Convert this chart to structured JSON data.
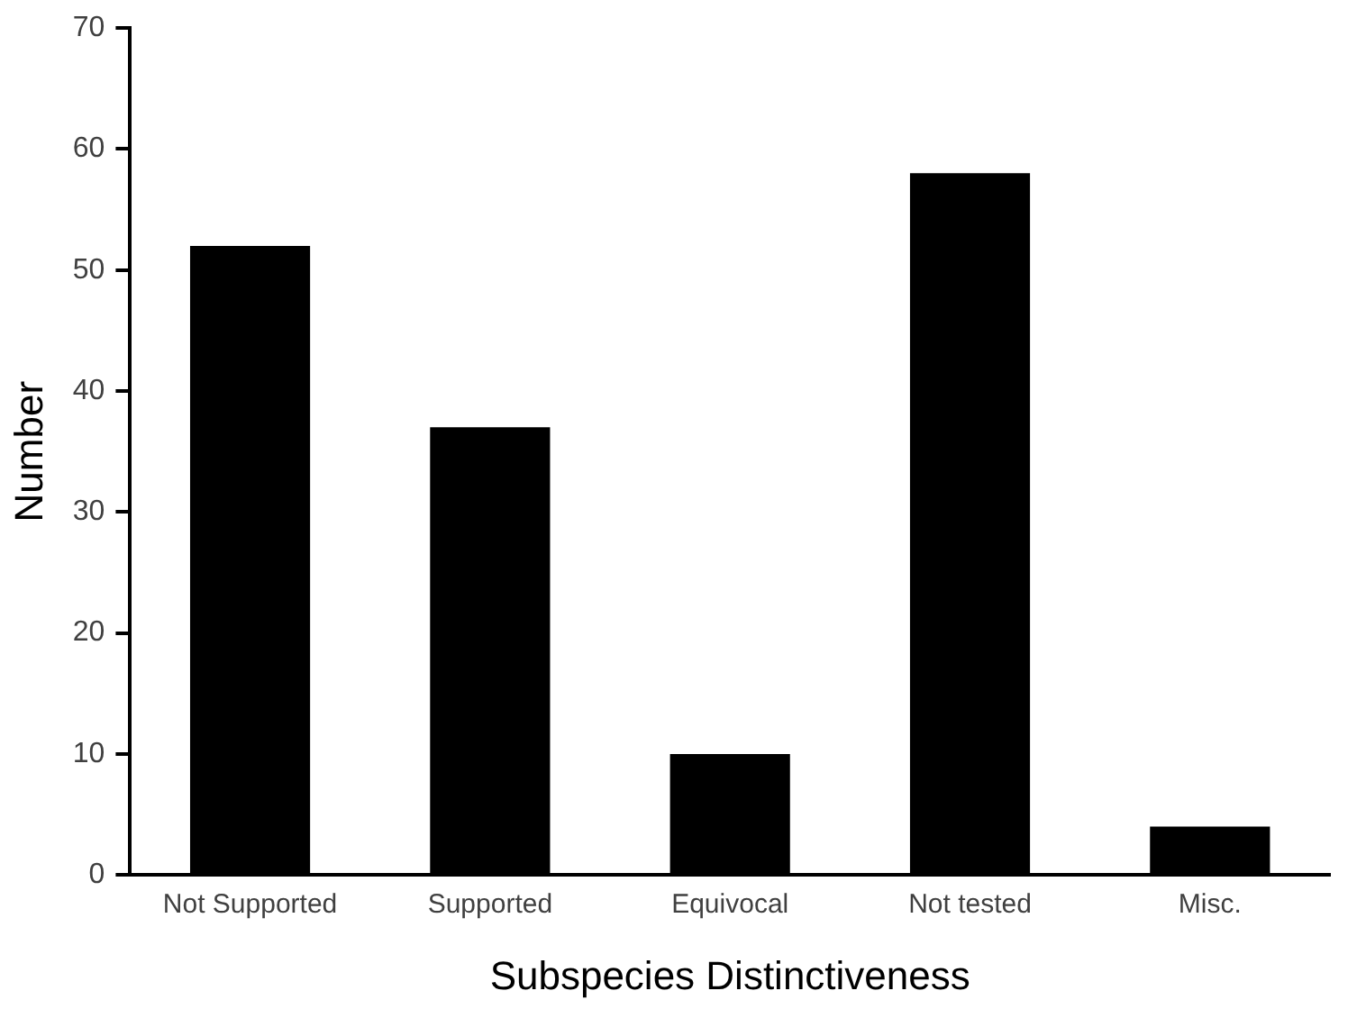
{
  "chart_data": {
    "type": "bar",
    "xlabel": "Subspecies Distinctiveness",
    "ylabel": "Number",
    "categories": [
      "Not Supported",
      "Supported",
      "Equivocal",
      "Not tested",
      "Misc."
    ],
    "values": [
      52,
      37,
      10,
      58,
      4
    ],
    "color": "#000000",
    "ylim": [
      0,
      70
    ],
    "yticks": [
      0,
      10,
      20,
      30,
      40,
      50,
      60,
      70
    ],
    "grid": false,
    "legend": false
  }
}
